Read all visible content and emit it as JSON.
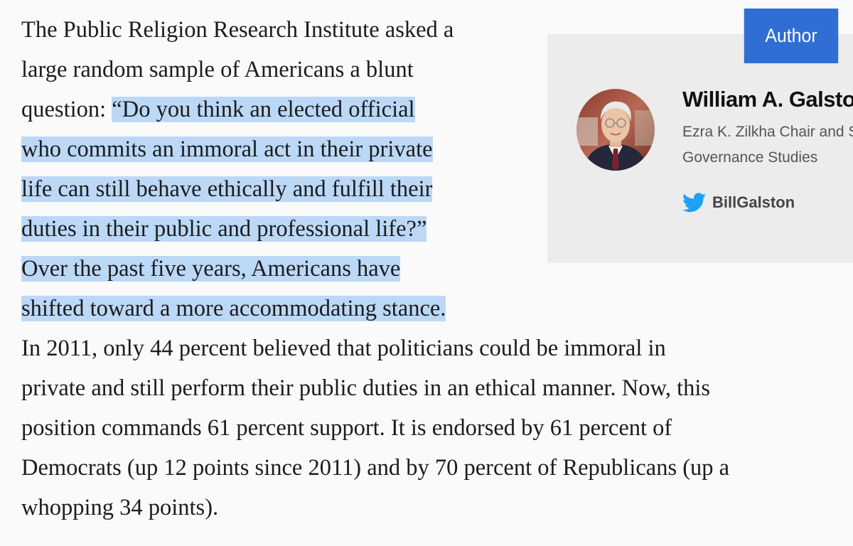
{
  "article": {
    "lines": [
      "The Public Religion Research Institute asked a",
      "large random sample of Americans a blunt",
      "question: ",
      "“Do you think an elected official",
      "who commits an immoral act in their private",
      "life can still behave ethically and fulfill their",
      "duties in their public and professional life?”",
      "Over the past five years, Americans have",
      "shifted toward a more accommodating stance.",
      "In 2011, only 44 percent believed that politicians could be immoral in",
      "private and still perform their public duties in an ethical manner.  Now, this",
      "position commands 61 percent support. It is endorsed by 61 percent of",
      "Democrats (up 12 points since 2011) and by 70 percent of Republicans (up a",
      "whopping 34 points)."
    ]
  },
  "author_card": {
    "tab_label": "Author",
    "name": "William A. Galston",
    "title_line1": "Ezra K. Zilkha Chair and Senior Fellow",
    "title_line2": "Governance Studies",
    "twitter_handle": "BillGalston",
    "avatar_icon": "author-photo",
    "twitter_icon": "twitter-bird-icon"
  },
  "colors": {
    "selection_highlight": "#bcd8f7",
    "author_tab": "#2f6fd4",
    "card_background": "#ececec",
    "twitter_blue": "#1da1f2"
  }
}
